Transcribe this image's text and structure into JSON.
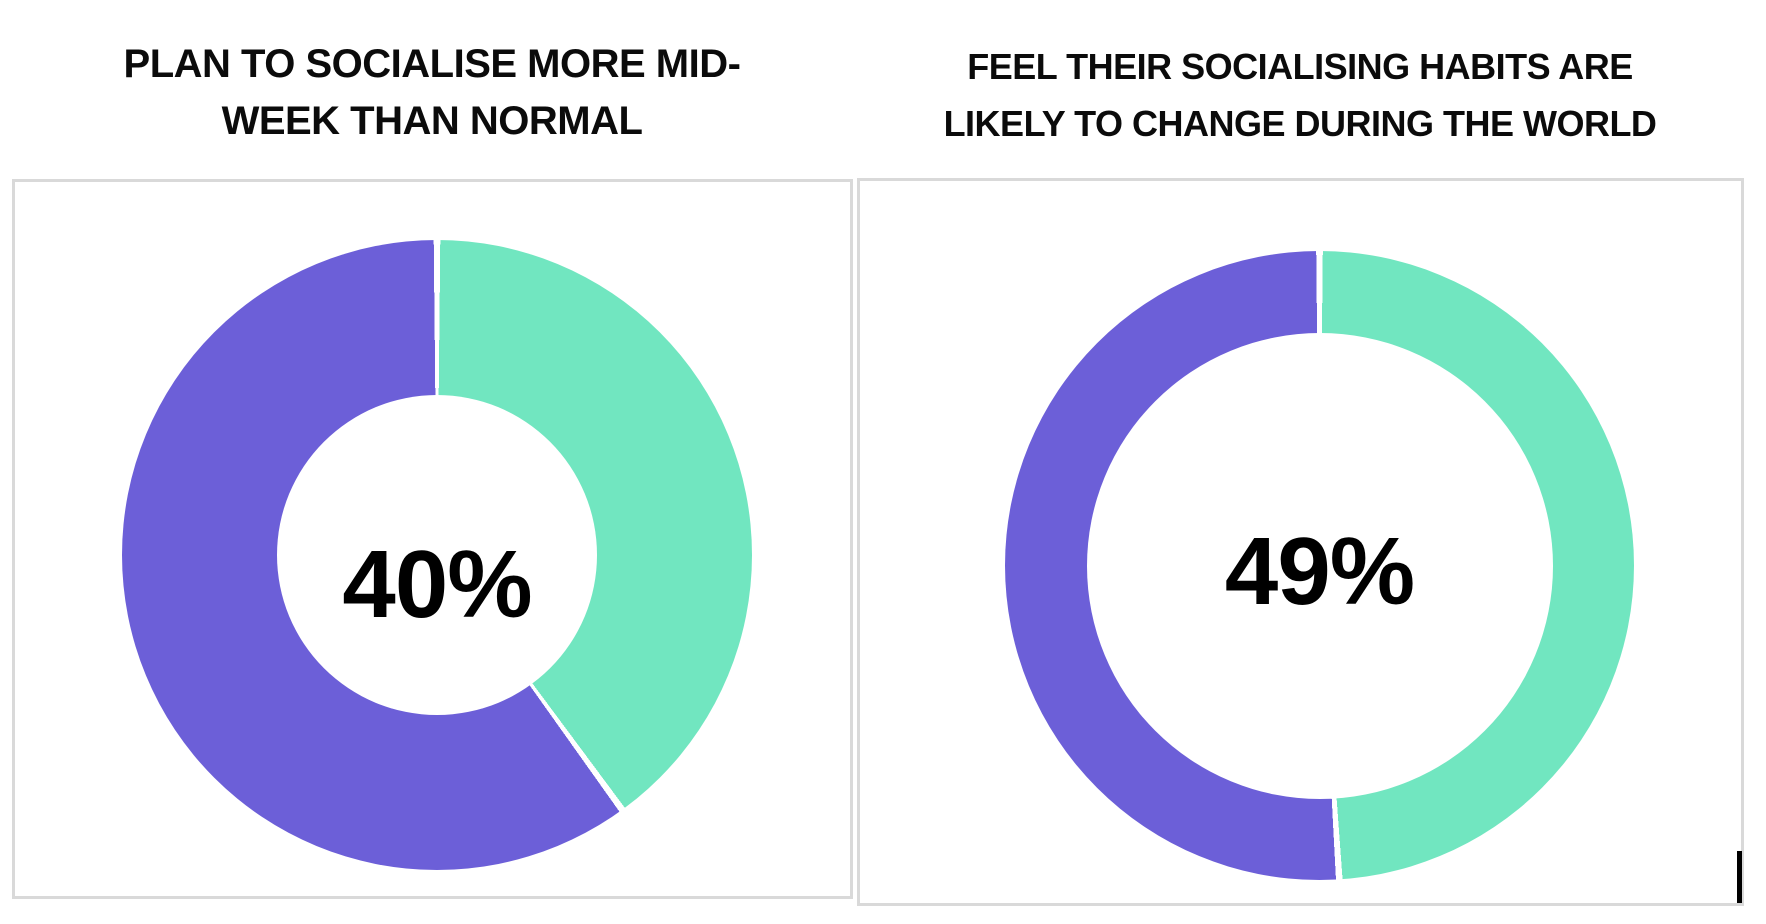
{
  "page": {
    "background": "#ffffff",
    "panel_border_color": "#d9d9d9",
    "text_color": "#0b0b0b"
  },
  "charts": [
    {
      "title_line1": "PLAN TO SOCIALISE MORE MID-",
      "title_line2": "WEEK THAN NORMAL",
      "center_label": "40%",
      "value_pct": 40,
      "remainder_pct": 60,
      "value_color": "#71E6C0",
      "remainder_color": "#6C5FD8"
    },
    {
      "title_line1": "FEEL THEIR SOCIALISING HABITS ARE",
      "title_line2": "LIKELY TO CHANGE DURING THE WORLD",
      "center_label": "49%",
      "value_pct": 49,
      "remainder_pct": 51,
      "value_color": "#71E6C0",
      "remainder_color": "#6C5FD8"
    }
  ],
  "chart_data": [
    {
      "type": "pie",
      "subtype": "donut",
      "title": "PLAN TO SOCIALISE MORE MID-WEEK THAN NORMAL",
      "center_label": "40%",
      "start_angle_deg": 0,
      "direction": "clockwise",
      "legend": "none",
      "segments": [
        {
          "label": "highlighted value (green)",
          "value": 40,
          "color": "#71E6C0"
        },
        {
          "label": "remainder (purple)",
          "value": 60,
          "color": "#6C5FD8"
        }
      ]
    },
    {
      "type": "pie",
      "subtype": "donut",
      "title": "FEEL THEIR SOCIALISING HABITS ARE LIKELY TO CHANGE DURING THE WORLD",
      "center_label": "49%",
      "start_angle_deg": 0,
      "direction": "clockwise",
      "legend": "none",
      "segments": [
        {
          "label": "highlighted value (green)",
          "value": 49,
          "color": "#71E6C0"
        },
        {
          "label": "remainder (purple)",
          "value": 51,
          "color": "#6C5FD8"
        }
      ]
    }
  ],
  "editor": {
    "text_cursor_visible": true
  }
}
